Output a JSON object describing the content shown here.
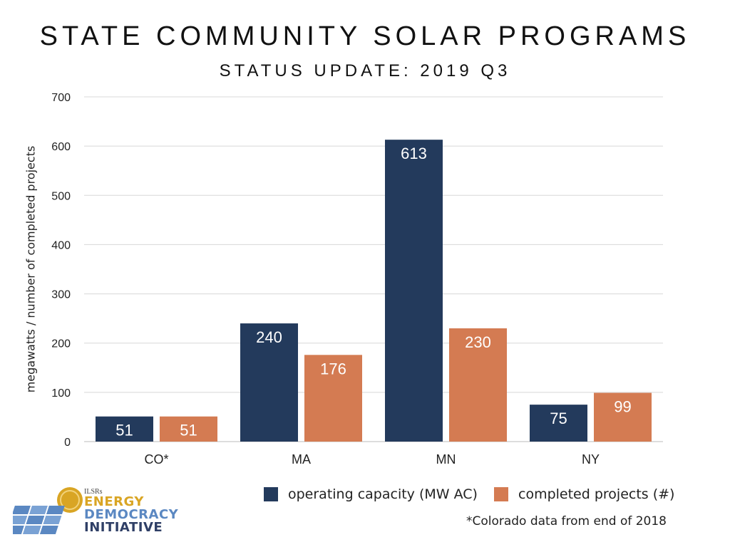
{
  "colors": {
    "operating": "#233a5c",
    "completed": "#d47b52",
    "grid": "#d8d8d8",
    "logo_gold": "#d9a524",
    "logo_blue": "#5b88c2",
    "logo_navy": "#2f3f66"
  },
  "logo": {
    "org": "ILSRs",
    "line1": "ENERGY",
    "line2": "DEMOCRACY",
    "line3": "INITIATIVE"
  },
  "footnote": "*Colorado data from end of 2018",
  "chart_data": {
    "type": "bar",
    "title": "STATE COMMUNITY SOLAR PROGRAMS",
    "subtitle": "STATUS UPDATE: 2019 Q3",
    "ylabel": "megawatts / number of completed projects",
    "ylim": [
      0,
      700
    ],
    "yticks": [
      0,
      100,
      200,
      300,
      400,
      500,
      600,
      700
    ],
    "grid": true,
    "legend_position": "bottom-right",
    "categories": [
      "CO*",
      "MA",
      "MN",
      "NY"
    ],
    "series": [
      {
        "name": "operating capacity (MW AC)",
        "values": [
          51,
          240,
          613,
          75
        ]
      },
      {
        "name": "completed projects (#)",
        "values": [
          51,
          176,
          230,
          99
        ]
      }
    ]
  }
}
